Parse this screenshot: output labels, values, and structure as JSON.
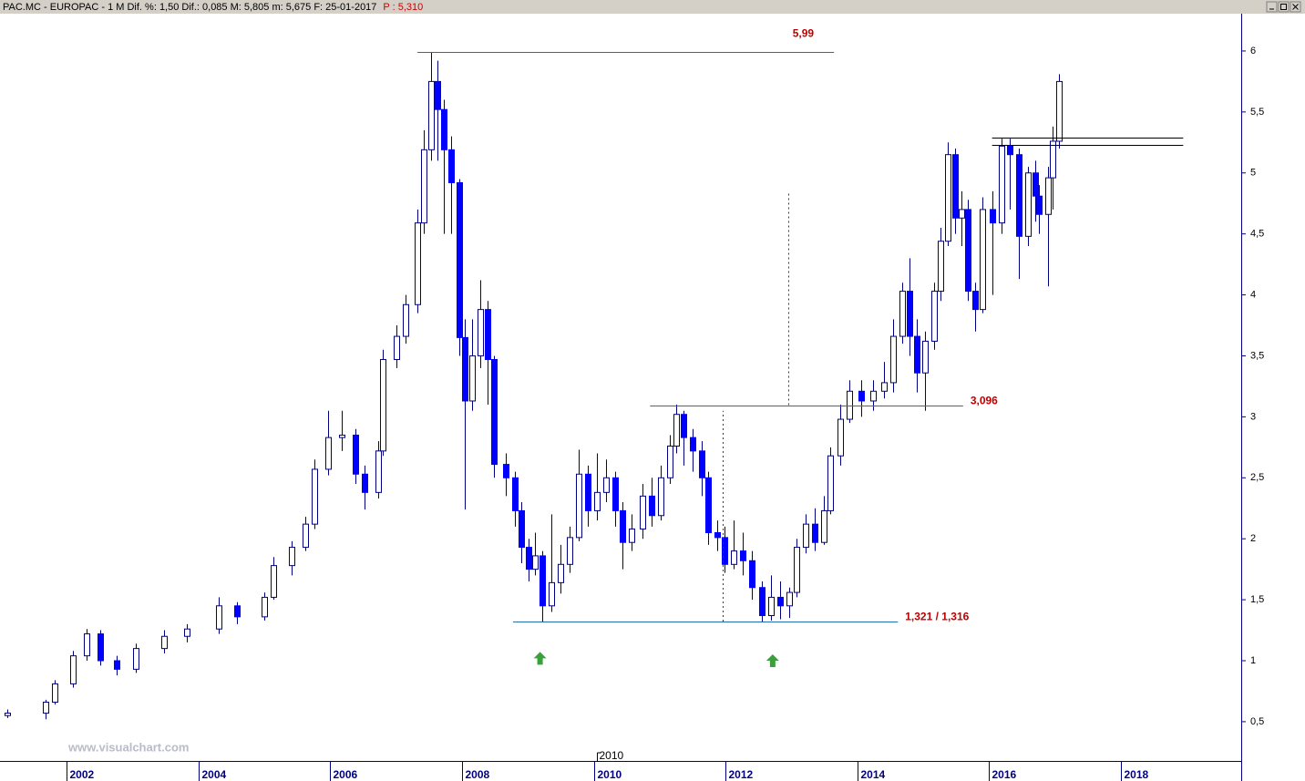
{
  "chart_data": {
    "type": "candlestick",
    "title": "PAC.MC - EUROPAC - 1 M  Dif. %: 1,50  Dif.: 0,085  M: 5,805  m: 5,675  F: 25-01-2017",
    "last_price_label": "P : 5,310",
    "watermark": "www.visualchart.com",
    "up_color": "#ffffff",
    "down_color": "#0000ff",
    "edge_color": "#000080",
    "x": [
      2001.05,
      2001.63,
      2001.76,
      2002.04,
      2002.25,
      2002.46,
      2002.7,
      2003.0,
      2003.42,
      2003.77,
      2004.25,
      2004.53,
      2004.95,
      2005.08,
      2005.36,
      2005.57,
      2005.71,
      2005.91,
      2006.12,
      2006.33,
      2006.47,
      2006.68,
      2006.74,
      2006.95,
      2007.09,
      2007.27,
      2007.37,
      2007.48,
      2007.57,
      2007.67,
      2007.78,
      2007.9,
      2007.99,
      2008.1,
      2008.22,
      2008.33,
      2008.43,
      2008.61,
      2008.75,
      2008.85,
      2008.96,
      2009.05,
      2009.16,
      2009.3,
      2009.44,
      2009.58,
      2009.72,
      2009.86,
      2009.99,
      2010.13,
      2010.27,
      2010.38,
      2010.52,
      2010.69,
      2010.82,
      2010.96,
      2011.1,
      2011.2,
      2011.31,
      2011.45,
      2011.59,
      2011.68,
      2011.82,
      2011.93,
      2012.07,
      2012.21,
      2012.35,
      2012.49,
      2012.63,
      2012.77,
      2012.91,
      2013.02,
      2013.16,
      2013.3,
      2013.44,
      2013.54,
      2013.68,
      2013.82,
      2014.01,
      2014.19,
      2014.35,
      2014.49,
      2014.63,
      2014.74,
      2014.84,
      2014.97,
      2015.11,
      2015.21,
      2015.32,
      2015.43,
      2015.53,
      2015.62,
      2015.73,
      2015.84,
      2015.99,
      2016.13,
      2016.26,
      2016.4,
      2016.54,
      2016.64,
      2016.7,
      2016.84,
      2016.91,
      2017.01
    ],
    "open": [
      0.55,
      0.57,
      0.66,
      0.81,
      1.04,
      1.22,
      1.0,
      0.93,
      1.1,
      1.2,
      1.26,
      1.45,
      1.36,
      1.52,
      1.78,
      1.93,
      2.12,
      2.57,
      2.83,
      2.85,
      2.53,
      2.38,
      2.72,
      3.47,
      3.66,
      3.92,
      4.59,
      5.19,
      5.75,
      5.52,
      5.19,
      4.92,
      3.65,
      3.13,
      3.5,
      3.88,
      3.47,
      2.61,
      2.5,
      2.23,
      1.93,
      1.75,
      1.86,
      1.45,
      1.64,
      1.79,
      2.01,
      2.53,
      2.23,
      2.38,
      2.5,
      2.23,
      1.97,
      2.08,
      2.35,
      2.19,
      2.5,
      2.76,
      3.02,
      2.83,
      2.72,
      2.5,
      2.05,
      2.01,
      1.79,
      1.9,
      1.82,
      1.6,
      1.37,
      1.52,
      1.45,
      1.56,
      1.93,
      2.12,
      1.97,
      2.23,
      2.68,
      2.98,
      3.21,
      3.13,
      3.21,
      3.28,
      3.66,
      4.03,
      3.66,
      3.36,
      3.62,
      4.03,
      4.44,
      5.15,
      4.63,
      4.7,
      4.03,
      3.88,
      4.7,
      4.59,
      5.22,
      5.15,
      4.48,
      5.0,
      4.81,
      4.66,
      4.96,
      5.26
    ],
    "high": [
      0.6,
      0.68,
      0.84,
      1.08,
      1.26,
      1.25,
      1.04,
      1.14,
      1.25,
      1.3,
      1.52,
      1.48,
      1.56,
      1.85,
      1.98,
      2.18,
      2.65,
      3.05,
      3.05,
      2.9,
      2.6,
      2.8,
      3.55,
      3.75,
      4.0,
      4.7,
      5.35,
      5.99,
      5.92,
      5.6,
      5.3,
      4.95,
      3.8,
      3.8,
      4.12,
      3.95,
      3.5,
      2.7,
      2.55,
      2.3,
      2.0,
      2.05,
      1.9,
      2.2,
      1.95,
      2.1,
      2.73,
      2.6,
      2.7,
      2.65,
      2.55,
      2.3,
      2.2,
      2.45,
      2.5,
      2.6,
      2.85,
      3.1,
      3.05,
      2.9,
      2.8,
      2.55,
      2.15,
      2.1,
      2.15,
      2.05,
      1.9,
      1.65,
      1.7,
      1.65,
      1.6,
      2.0,
      2.2,
      2.25,
      2.35,
      2.75,
      3.1,
      3.3,
      3.3,
      3.3,
      3.45,
      3.8,
      4.1,
      4.3,
      3.8,
      3.7,
      4.1,
      4.55,
      5.25,
      5.2,
      4.85,
      4.78,
      4.1,
      4.8,
      4.85,
      5.28,
      5.28,
      5.2,
      5.05,
      5.1,
      4.9,
      5.05,
      5.38,
      5.81
    ],
    "low": [
      0.53,
      0.52,
      0.64,
      0.78,
      1.0,
      0.96,
      0.88,
      0.9,
      1.06,
      1.15,
      1.22,
      1.3,
      1.33,
      1.5,
      1.7,
      1.9,
      2.08,
      2.52,
      2.72,
      2.45,
      2.24,
      2.33,
      2.68,
      3.4,
      3.6,
      3.85,
      4.5,
      5.1,
      5.1,
      4.5,
      4.5,
      3.5,
      2.24,
      3.05,
      3.4,
      3.1,
      2.5,
      2.35,
      2.1,
      1.8,
      1.65,
      1.7,
      1.32,
      1.4,
      1.55,
      1.72,
      1.98,
      2.1,
      2.15,
      2.3,
      2.1,
      1.75,
      1.9,
      2.0,
      2.1,
      2.15,
      2.45,
      2.7,
      2.6,
      2.55,
      2.35,
      1.95,
      1.9,
      1.72,
      1.75,
      1.7,
      1.5,
      1.316,
      1.33,
      1.34,
      1.35,
      1.52,
      1.88,
      1.9,
      1.95,
      2.2,
      2.6,
      2.95,
      3.0,
      3.05,
      3.15,
      3.2,
      3.6,
      3.5,
      3.2,
      3.05,
      3.55,
      3.95,
      4.4,
      4.5,
      4.4,
      3.95,
      3.7,
      3.85,
      4.0,
      4.5,
      4.7,
      4.13,
      4.4,
      4.6,
      4.5,
      4.07,
      4.7,
      5.2
    ],
    "close": [
      0.57,
      0.66,
      0.81,
      1.04,
      1.22,
      1.0,
      0.93,
      1.1,
      1.2,
      1.26,
      1.45,
      1.36,
      1.52,
      1.78,
      1.93,
      2.12,
      2.57,
      2.83,
      2.85,
      2.53,
      2.38,
      2.72,
      3.47,
      3.66,
      3.92,
      4.59,
      5.19,
      5.75,
      5.52,
      5.19,
      4.92,
      3.65,
      3.13,
      3.5,
      3.88,
      3.47,
      2.61,
      2.5,
      2.23,
      1.93,
      1.75,
      1.86,
      1.45,
      1.64,
      1.79,
      2.01,
      2.53,
      2.23,
      2.38,
      2.5,
      2.23,
      1.97,
      2.08,
      2.35,
      2.19,
      2.5,
      2.76,
      3.02,
      2.83,
      2.72,
      2.5,
      2.05,
      2.01,
      1.79,
      1.9,
      1.82,
      1.6,
      1.37,
      1.52,
      1.45,
      1.56,
      1.93,
      2.12,
      1.97,
      2.23,
      2.68,
      2.98,
      3.21,
      3.13,
      3.21,
      3.28,
      3.66,
      4.03,
      3.66,
      3.36,
      3.62,
      4.03,
      4.44,
      5.15,
      4.63,
      4.7,
      4.03,
      3.88,
      4.7,
      4.59,
      5.22,
      5.15,
      4.48,
      5.0,
      4.81,
      4.66,
      4.96,
      5.26,
      5.75
    ],
    "xlim": [
      2000.935,
      2019.77
    ],
    "xticks": [
      2002,
      2004,
      2006,
      2008,
      2010,
      2012,
      2014,
      2016,
      2018
    ],
    "ylim": [
      0.178,
      6.306
    ],
    "yticks": [
      {
        "value": 0.5,
        "label": "0,5"
      },
      1,
      {
        "value": 1.5,
        "label": "1,5"
      },
      2,
      {
        "value": 2.5,
        "label": "2,5"
      },
      3,
      {
        "value": 3.5,
        "label": "3,5"
      },
      4,
      {
        "value": 4.5,
        "label": "4,5"
      },
      5,
      {
        "value": 5.5,
        "label": "5,5"
      },
      6
    ],
    "cursor": {
      "x": 2010,
      "label": "2010"
    },
    "levels": [
      {
        "y": 5.99,
        "x1": 2007.27,
        "x2": 2013.59,
        "label": "5,99",
        "color": "#1f6fb2",
        "label_side": "above"
      },
      {
        "y": 3.096,
        "x1": 2010.8,
        "x2": 2015.55,
        "label": "3,096",
        "color": "#1f6fb2",
        "label_side": "right"
      },
      {
        "y": 1.321,
        "x1": 2008.72,
        "x2": 2014.56,
        "label": "1,321 / 1,316",
        "color": "#1f6fb2",
        "label_side": "right"
      },
      {
        "y": 5.29,
        "x1": 2015.99,
        "x2": 2018.89,
        "color": "#000000"
      },
      {
        "y": 5.23,
        "x1": 2015.99,
        "x2": 2018.89,
        "color": "#000000"
      }
    ],
    "verticals": [
      {
        "x": 2012.9,
        "y1": 3.096,
        "y2": 4.83,
        "color": "#c0002a"
      },
      {
        "x": 2011.9,
        "y1": 1.321,
        "y2": 3.05,
        "color": "#c0002a"
      }
    ],
    "arrows": [
      {
        "x": 2009.13,
        "y": 1.02
      },
      {
        "x": 2012.66,
        "y": 1.0
      }
    ],
    "arrow_color": "#3aa03a"
  }
}
